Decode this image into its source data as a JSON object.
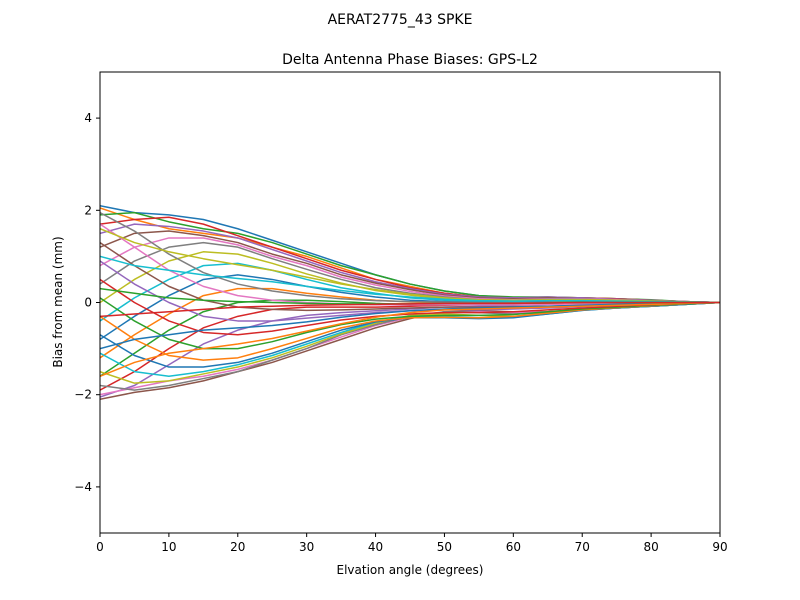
{
  "suptitle": "AERAT2775_43    SPKE",
  "chart_data": {
    "type": "line",
    "title": "Delta Antenna Phase Biases: GPS-L2",
    "xlabel": "Elvation angle (degrees)",
    "ylabel": "Bias from mean (mm)",
    "xlim": [
      0,
      90
    ],
    "ylim": [
      -5,
      5
    ],
    "xticks": [
      0,
      10,
      20,
      30,
      40,
      50,
      60,
      70,
      80,
      90
    ],
    "yticks": [
      -4,
      -2,
      0,
      2,
      4
    ],
    "xtick_labels": [
      "0",
      "10",
      "20",
      "30",
      "40",
      "50",
      "60",
      "70",
      "80",
      "90"
    ],
    "ytick_labels": [
      "−4",
      "−2",
      "0",
      "2",
      "4"
    ],
    "grid": false,
    "legend": "none",
    "x": [
      0,
      5,
      10,
      15,
      20,
      25,
      30,
      35,
      40,
      45,
      50,
      55,
      60,
      65,
      70,
      75,
      80,
      85,
      90
    ],
    "series": [
      {
        "values": [
          2.1,
          1.95,
          1.9,
          1.8,
          1.6,
          1.35,
          1.1,
          0.85,
          0.6,
          0.4,
          0.25,
          0.15,
          0.1,
          0.1,
          0.1,
          0.08,
          0.05,
          0.02,
          0.0
        ]
      },
      {
        "values": [
          2.05,
          1.8,
          1.6,
          1.5,
          1.4,
          1.2,
          1.0,
          0.75,
          0.5,
          0.35,
          0.2,
          0.12,
          0.1,
          0.12,
          0.1,
          0.08,
          0.05,
          0.02,
          0.0
        ]
      },
      {
        "values": [
          1.9,
          1.95,
          1.75,
          1.6,
          1.5,
          1.3,
          1.05,
          0.8,
          0.6,
          0.4,
          0.25,
          0.15,
          0.12,
          0.12,
          0.1,
          0.08,
          0.06,
          0.02,
          0.0
        ]
      },
      {
        "values": [
          1.7,
          1.8,
          1.85,
          1.7,
          1.45,
          1.2,
          0.95,
          0.7,
          0.5,
          0.32,
          0.2,
          0.12,
          0.1,
          0.1,
          0.1,
          0.08,
          0.05,
          0.02,
          0.0
        ]
      },
      {
        "values": [
          1.5,
          1.7,
          1.65,
          1.55,
          1.4,
          1.15,
          0.9,
          0.65,
          0.45,
          0.3,
          0.18,
          0.12,
          0.1,
          0.12,
          0.1,
          0.07,
          0.05,
          0.02,
          0.0
        ]
      },
      {
        "values": [
          1.2,
          1.5,
          1.55,
          1.45,
          1.3,
          1.05,
          0.85,
          0.6,
          0.42,
          0.28,
          0.16,
          0.1,
          0.08,
          0.1,
          0.08,
          0.06,
          0.04,
          0.02,
          0.0
        ]
      },
      {
        "values": [
          0.8,
          1.2,
          1.4,
          1.4,
          1.25,
          1.0,
          0.8,
          0.55,
          0.38,
          0.24,
          0.14,
          0.08,
          0.06,
          0.08,
          0.08,
          0.06,
          0.04,
          0.02,
          0.0
        ]
      },
      {
        "values": [
          0.4,
          0.9,
          1.2,
          1.3,
          1.2,
          0.95,
          0.72,
          0.5,
          0.32,
          0.2,
          0.12,
          0.06,
          0.05,
          0.07,
          0.07,
          0.05,
          0.04,
          0.02,
          0.0
        ]
      },
      {
        "values": [
          0.0,
          0.5,
          0.9,
          1.1,
          1.05,
          0.85,
          0.62,
          0.42,
          0.26,
          0.16,
          0.08,
          0.04,
          0.03,
          0.05,
          0.06,
          0.05,
          0.03,
          0.01,
          0.0
        ]
      },
      {
        "values": [
          -0.4,
          0.1,
          0.5,
          0.8,
          0.85,
          0.7,
          0.5,
          0.32,
          0.2,
          0.1,
          0.05,
          0.02,
          0.0,
          0.03,
          0.05,
          0.04,
          0.03,
          0.01,
          0.0
        ]
      },
      {
        "values": [
          -0.8,
          -0.3,
          0.15,
          0.5,
          0.6,
          0.5,
          0.35,
          0.22,
          0.12,
          0.05,
          0.02,
          0.0,
          -0.01,
          0.02,
          0.04,
          0.04,
          0.02,
          0.01,
          0.0
        ]
      },
      {
        "values": [
          -1.2,
          -0.7,
          -0.25,
          0.15,
          0.3,
          0.3,
          0.2,
          0.12,
          0.05,
          0.01,
          -0.01,
          -0.02,
          -0.02,
          0.0,
          0.03,
          0.03,
          0.02,
          0.01,
          0.0
        ]
      },
      {
        "values": [
          -1.6,
          -1.1,
          -0.6,
          -0.2,
          0.0,
          0.05,
          0.05,
          0.02,
          -0.02,
          -0.04,
          -0.04,
          -0.04,
          -0.03,
          -0.01,
          0.02,
          0.02,
          0.01,
          0.0,
          0.0
        ]
      },
      {
        "values": [
          -1.9,
          -1.5,
          -1.0,
          -0.55,
          -0.3,
          -0.15,
          -0.1,
          -0.1,
          -0.1,
          -0.08,
          -0.06,
          -0.05,
          -0.04,
          -0.02,
          0.0,
          0.01,
          0.01,
          0.0,
          0.0
        ]
      },
      {
        "values": [
          -2.05,
          -1.8,
          -1.35,
          -0.9,
          -0.6,
          -0.4,
          -0.28,
          -0.22,
          -0.18,
          -0.14,
          -0.1,
          -0.08,
          -0.06,
          -0.04,
          -0.02,
          0.0,
          0.0,
          0.0,
          0.0
        ]
      },
      {
        "values": [
          -2.1,
          -1.95,
          -1.85,
          -1.7,
          -1.5,
          -1.3,
          -1.05,
          -0.8,
          -0.55,
          -0.35,
          -0.2,
          -0.18,
          -0.2,
          -0.2,
          -0.15,
          -0.12,
          -0.08,
          -0.04,
          0.0
        ]
      },
      {
        "values": [
          -2.0,
          -1.85,
          -1.7,
          -1.6,
          -1.45,
          -1.25,
          -1.0,
          -0.75,
          -0.5,
          -0.32,
          -0.22,
          -0.2,
          -0.22,
          -0.2,
          -0.15,
          -0.12,
          -0.08,
          -0.04,
          0.0
        ]
      },
      {
        "values": [
          -1.8,
          -1.9,
          -1.8,
          -1.65,
          -1.5,
          -1.25,
          -1.0,
          -0.7,
          -0.48,
          -0.3,
          -0.2,
          -0.22,
          -0.25,
          -0.22,
          -0.16,
          -0.12,
          -0.08,
          -0.04,
          0.0
        ]
      },
      {
        "values": [
          -1.5,
          -1.75,
          -1.7,
          -1.55,
          -1.4,
          -1.2,
          -0.95,
          -0.68,
          -0.45,
          -0.28,
          -0.25,
          -0.28,
          -0.3,
          -0.24,
          -0.16,
          -0.12,
          -0.08,
          -0.04,
          0.0
        ]
      },
      {
        "values": [
          -1.1,
          -1.5,
          -1.6,
          -1.5,
          -1.35,
          -1.15,
          -0.9,
          -0.65,
          -0.42,
          -0.3,
          -0.3,
          -0.33,
          -0.32,
          -0.25,
          -0.17,
          -0.12,
          -0.08,
          -0.04,
          0.0
        ]
      },
      {
        "values": [
          -0.7,
          -1.15,
          -1.4,
          -1.4,
          -1.3,
          -1.1,
          -0.85,
          -0.6,
          -0.42,
          -0.33,
          -0.33,
          -0.35,
          -0.33,
          -0.25,
          -0.17,
          -0.12,
          -0.08,
          -0.04,
          0.0
        ]
      },
      {
        "values": [
          -0.3,
          -0.8,
          -1.15,
          -1.25,
          -1.2,
          -1.0,
          -0.78,
          -0.55,
          -0.4,
          -0.33,
          -0.32,
          -0.33,
          -0.3,
          -0.23,
          -0.16,
          -0.11,
          -0.07,
          -0.03,
          0.0
        ]
      },
      {
        "values": [
          0.1,
          -0.4,
          -0.8,
          -1.0,
          -1.0,
          -0.85,
          -0.65,
          -0.48,
          -0.36,
          -0.3,
          -0.28,
          -0.28,
          -0.26,
          -0.2,
          -0.14,
          -0.1,
          -0.06,
          -0.03,
          0.0
        ]
      },
      {
        "values": [
          0.5,
          0.0,
          -0.4,
          -0.65,
          -0.7,
          -0.62,
          -0.5,
          -0.38,
          -0.3,
          -0.25,
          -0.22,
          -0.22,
          -0.2,
          -0.16,
          -0.12,
          -0.08,
          -0.05,
          -0.02,
          0.0
        ]
      },
      {
        "values": [
          0.9,
          0.4,
          0.0,
          -0.3,
          -0.4,
          -0.4,
          -0.34,
          -0.28,
          -0.22,
          -0.18,
          -0.16,
          -0.16,
          -0.14,
          -0.12,
          -0.09,
          -0.06,
          -0.04,
          -0.02,
          0.0
        ]
      },
      {
        "values": [
          1.3,
          0.8,
          0.35,
          0.05,
          -0.1,
          -0.15,
          -0.17,
          -0.16,
          -0.14,
          -0.12,
          -0.1,
          -0.1,
          -0.09,
          -0.08,
          -0.06,
          -0.04,
          -0.03,
          -0.01,
          0.0
        ]
      },
      {
        "values": [
          1.7,
          1.2,
          0.7,
          0.35,
          0.15,
          0.05,
          0.0,
          -0.03,
          -0.05,
          -0.05,
          -0.05,
          -0.05,
          -0.05,
          -0.04,
          -0.03,
          -0.02,
          -0.02,
          -0.01,
          0.0
        ]
      },
      {
        "values": [
          1.95,
          1.55,
          1.05,
          0.65,
          0.4,
          0.25,
          0.15,
          0.08,
          0.04,
          0.02,
          0.01,
          0.0,
          0.0,
          0.0,
          0.0,
          0.0,
          0.0,
          0.0,
          0.0
        ]
      },
      {
        "values": [
          1.6,
          1.3,
          1.1,
          0.95,
          0.82,
          0.7,
          0.55,
          0.4,
          0.28,
          0.18,
          0.1,
          0.06,
          0.05,
          0.06,
          0.06,
          0.05,
          0.03,
          0.01,
          0.0
        ]
      },
      {
        "values": [
          1.0,
          0.8,
          0.7,
          0.6,
          0.52,
          0.45,
          0.35,
          0.26,
          0.18,
          0.12,
          0.07,
          0.04,
          0.03,
          0.04,
          0.04,
          0.03,
          0.02,
          0.01,
          0.0
        ]
      },
      {
        "values": [
          -1.0,
          -0.8,
          -0.7,
          -0.6,
          -0.55,
          -0.5,
          -0.42,
          -0.32,
          -0.24,
          -0.18,
          -0.14,
          -0.12,
          -0.1,
          -0.08,
          -0.06,
          -0.04,
          -0.03,
          -0.01,
          0.0
        ]
      },
      {
        "values": [
          -1.6,
          -1.3,
          -1.1,
          -1.0,
          -0.9,
          -0.78,
          -0.62,
          -0.46,
          -0.32,
          -0.22,
          -0.16,
          -0.14,
          -0.12,
          -0.1,
          -0.08,
          -0.06,
          -0.04,
          -0.02,
          0.0
        ]
      },
      {
        "values": [
          0.3,
          0.2,
          0.1,
          0.05,
          0.02,
          0.0,
          -0.02,
          -0.03,
          -0.03,
          -0.03,
          -0.02,
          -0.02,
          -0.02,
          -0.01,
          0.0,
          0.0,
          0.0,
          0.0,
          0.0
        ]
      },
      {
        "values": [
          -0.3,
          -0.25,
          -0.2,
          -0.15,
          -0.1,
          -0.08,
          -0.06,
          -0.05,
          -0.04,
          -0.03,
          -0.02,
          -0.02,
          -0.02,
          -0.01,
          0.0,
          0.0,
          0.0,
          0.0,
          0.0
        ]
      }
    ]
  }
}
